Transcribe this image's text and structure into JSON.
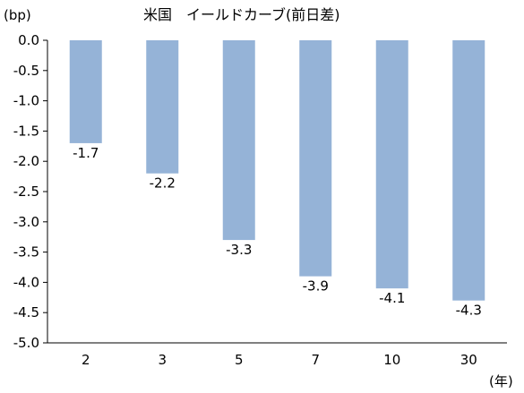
{
  "chart_data": {
    "type": "bar",
    "title": "米国　イールドカーブ(前日差)",
    "ylabel": "(bp)",
    "xlabel": "(年)",
    "categories": [
      "2",
      "3",
      "5",
      "7",
      "10",
      "30"
    ],
    "values": [
      -1.7,
      -2.2,
      -3.3,
      -3.9,
      -4.1,
      -4.3
    ],
    "data_labels": [
      "-1.7",
      "-2.2",
      "-3.3",
      "-3.9",
      "-4.1",
      "-4.3"
    ],
    "ylim": [
      -5.0,
      0.0
    ],
    "yticks": [
      "0.0",
      "-0.5",
      "-1.0",
      "-1.5",
      "-2.0",
      "-2.5",
      "-3.0",
      "-3.5",
      "-4.0",
      "-4.5",
      "-5.0"
    ],
    "grid": false,
    "colors": {
      "bar": "#95b3d7",
      "axis": "#000000"
    }
  }
}
